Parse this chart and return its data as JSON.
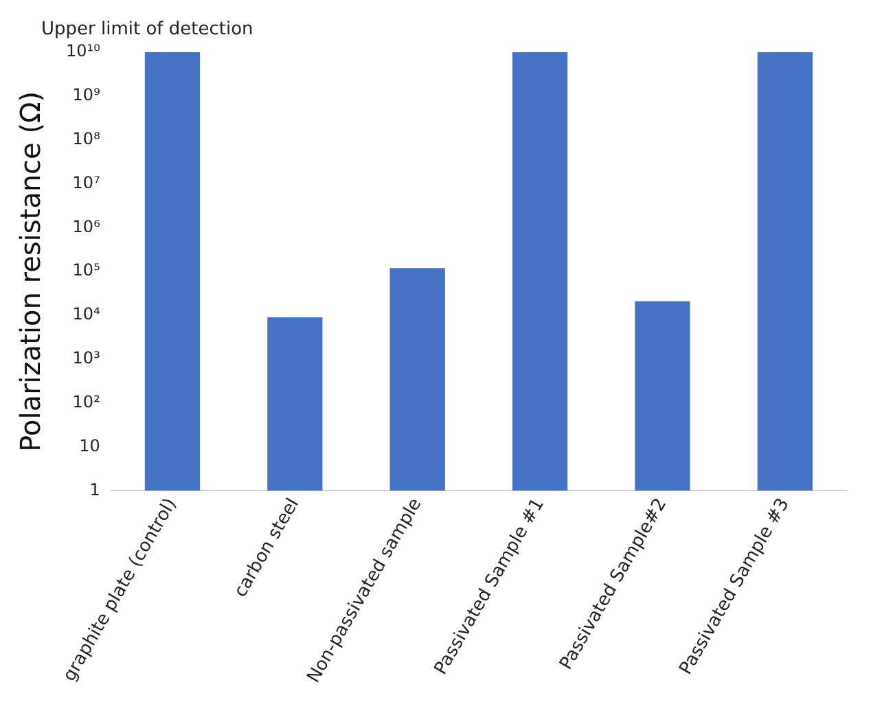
{
  "chart_data": {
    "type": "bar",
    "ylabel": "Polarization resistance (Ω)",
    "categories": [
      "graphite plate (control)",
      "carbon steel",
      "Non-passivated sample",
      "Passivated Sample #1",
      "Passivated Sample#2",
      "Passivated Sample #3"
    ],
    "values": [
      10000000000,
      9000,
      120000,
      10000000000,
      21000,
      10000000000
    ],
    "color": "#4472c4",
    "log": true,
    "ylim": [
      1,
      10000000000
    ],
    "yticks": [
      1,
      10,
      {
        "value": 100,
        "label": "10²"
      },
      {
        "value": 1000,
        "label": "10³"
      },
      {
        "value": 10000,
        "label": "10⁴"
      },
      {
        "value": 100000,
        "label": "10⁵"
      },
      {
        "value": 1000000,
        "label": "10⁶"
      },
      {
        "value": 10000000,
        "label": "10⁷"
      },
      {
        "value": 100000000,
        "label": "10⁸"
      },
      {
        "value": 1000000000,
        "label": "10⁹"
      },
      {
        "value": 10000000000,
        "label": "10¹⁰"
      }
    ],
    "grid": false,
    "legend": false,
    "annotations": [
      "Upper limit of detection"
    ]
  }
}
